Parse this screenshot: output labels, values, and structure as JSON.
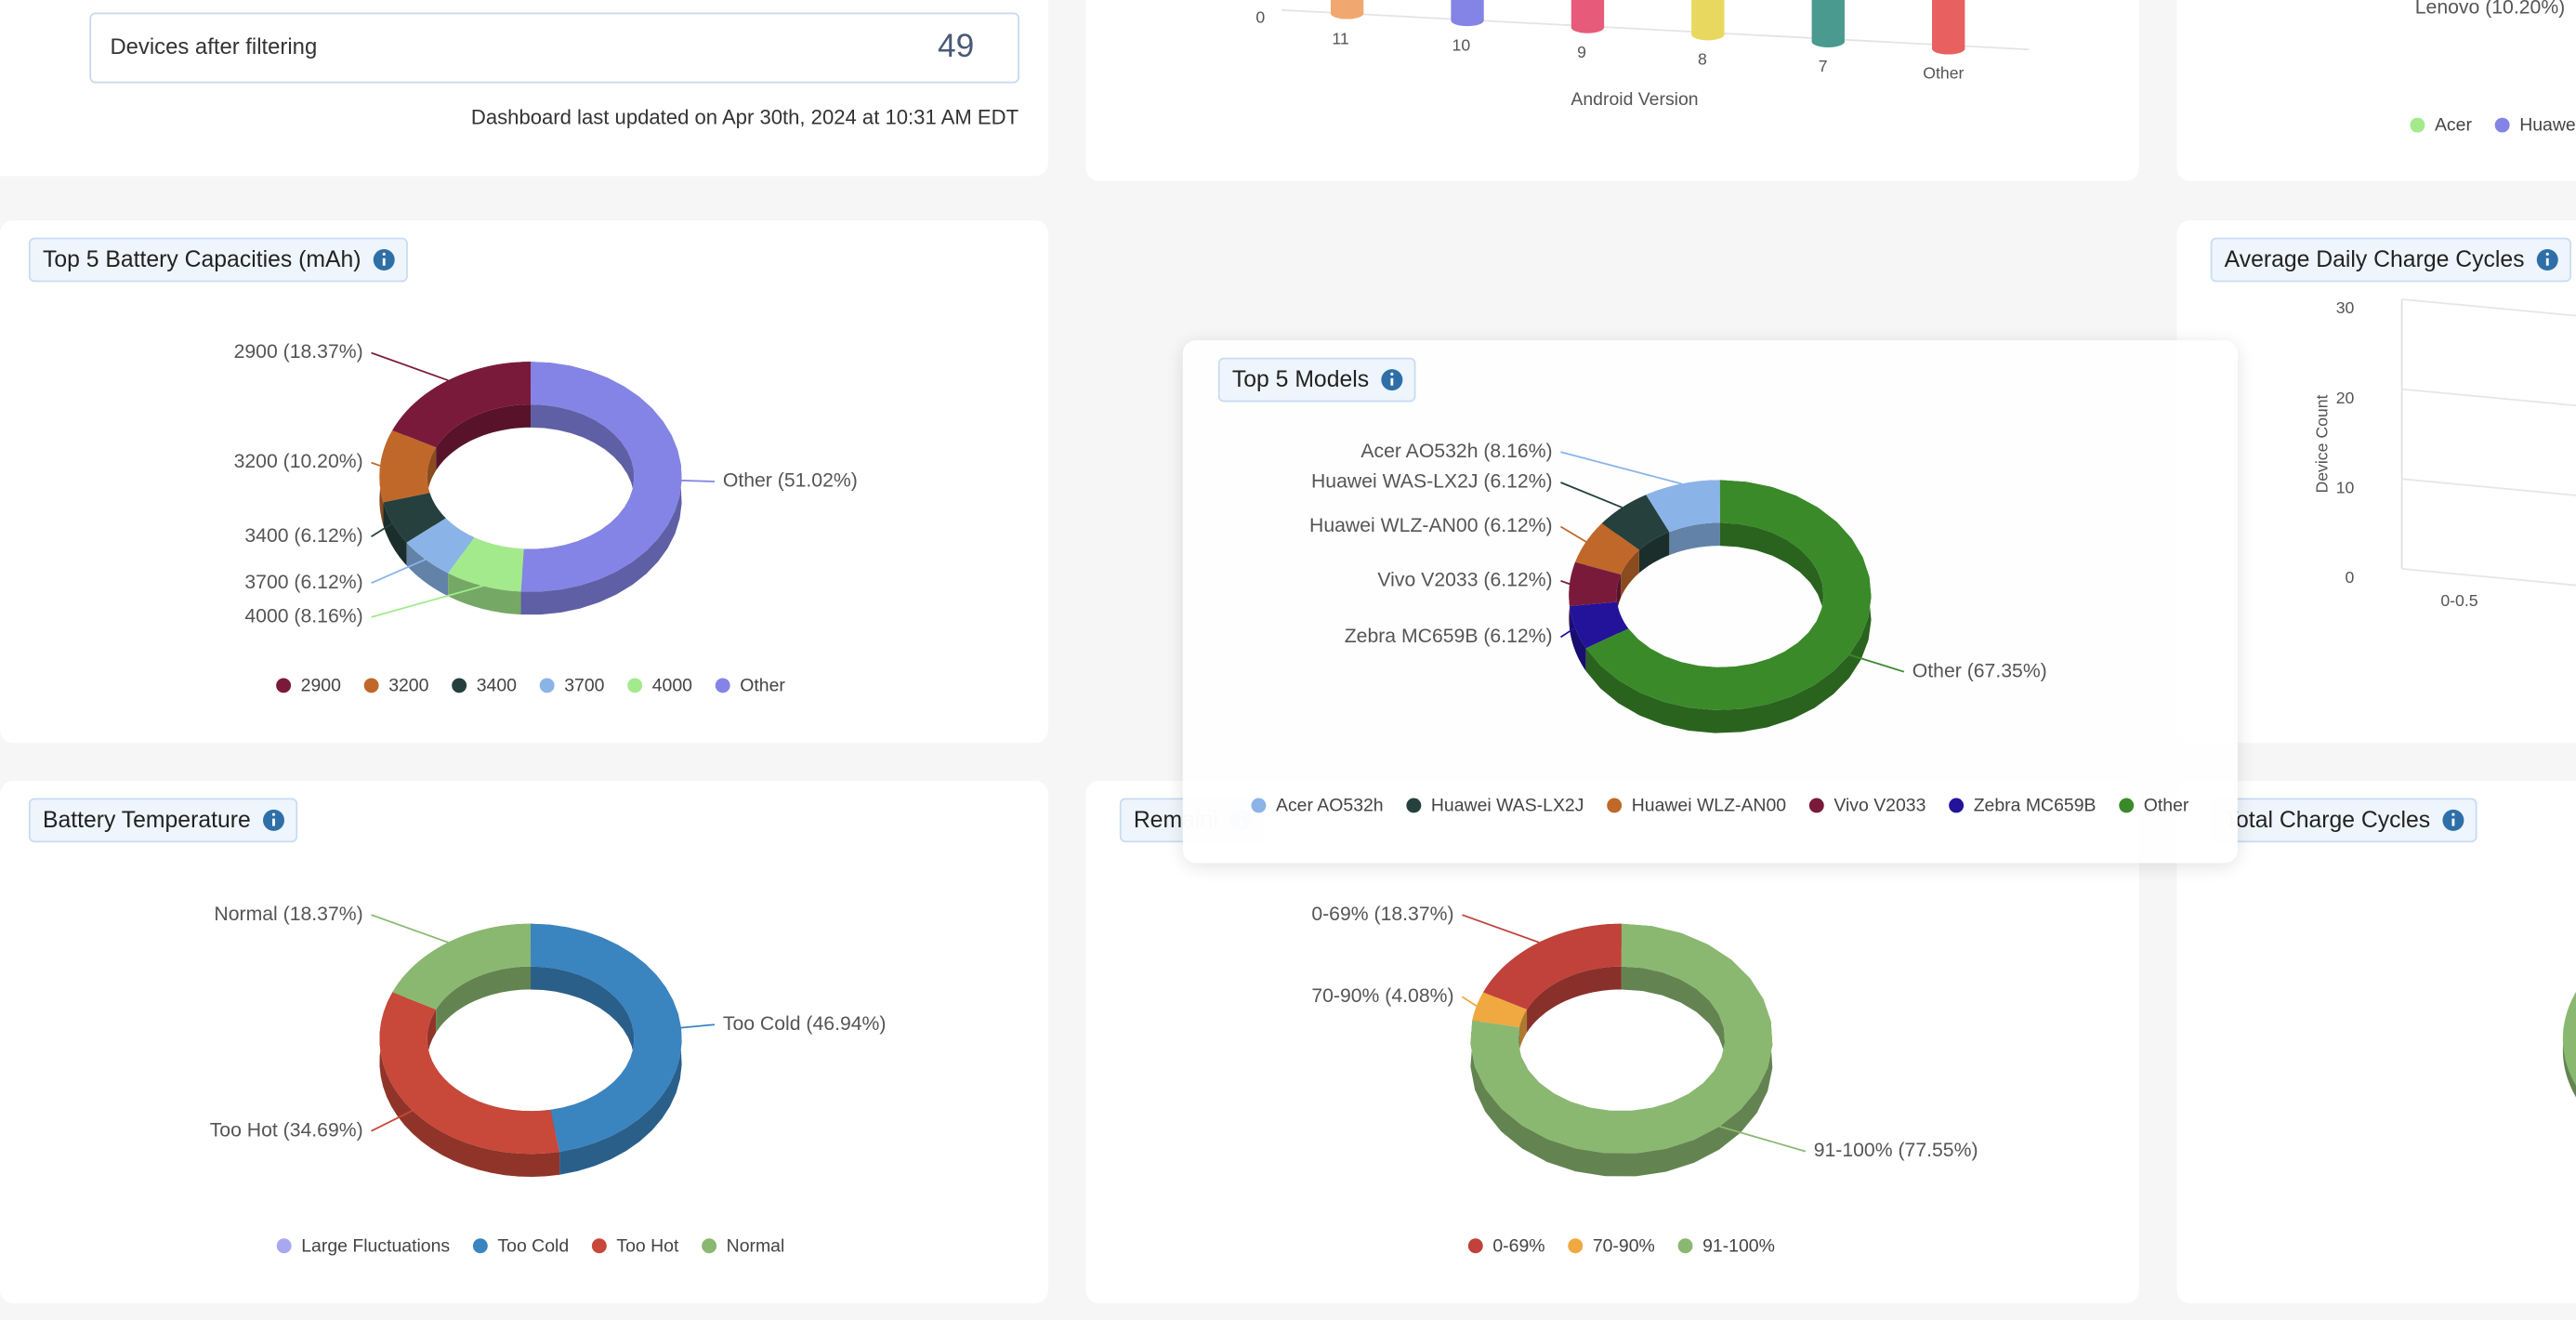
{
  "filter_panel": {
    "label": "Devices after filtering",
    "count": 49,
    "updated": "Dashboard last updated on Apr 30th, 2024 at 10:31 AM EDT"
  },
  "chart_data": [
    {
      "type": "bar",
      "x_label": "Android Version",
      "categories": [
        "11",
        "10",
        "9",
        "8",
        "7",
        "Other"
      ],
      "colors": [
        "#f0a870",
        "#8484e6",
        "#e85a7a",
        "#e8d860",
        "#4a9a90",
        "#e86060"
      ],
      "yticks": [
        0
      ]
    },
    {
      "type": "pie",
      "annotations": [
        "Lenovo (10.20%)"
      ],
      "categories": [
        "Acer",
        "Huawei"
      ],
      "colors": [
        "#a3ea8c",
        "#8484e6"
      ]
    },
    {
      "type": "pie",
      "title": "Top 5 Battery Capacities (mAh)",
      "direction": "counterclockwise",
      "categories": [
        "2900",
        "3200",
        "3400",
        "3700",
        "4000",
        "Other"
      ],
      "values": [
        18.37,
        10.2,
        6.12,
        6.12,
        8.16,
        51.02
      ],
      "value_labels": [
        "2900 (18.37%)",
        "3200 (10.20%)",
        "3400 (6.12%)",
        "3700 (6.12%)",
        "4000 (8.16%)",
        "Other (51.02%)"
      ],
      "colors": [
        "#7a1a3a",
        "#c0682a",
        "#25403d",
        "#8ab4e8",
        "#a3ea8c",
        "#8484e6"
      ]
    },
    {
      "type": "bar",
      "title": "Average Daily Charge Cycles",
      "y_label": "Device Count",
      "categories": [
        "0-0.5"
      ],
      "ylim": [
        0,
        30
      ],
      "yticks": [
        0,
        10,
        20,
        30
      ]
    },
    {
      "type": "pie",
      "title": "Top 5 Models",
      "direction": "counterclockwise",
      "categories": [
        "Acer AO532h",
        "Huawei WAS-LX2J",
        "Huawei WLZ-AN00",
        "Vivo V2033",
        "Zebra MC659B",
        "Other"
      ],
      "values": [
        8.16,
        6.12,
        6.12,
        6.12,
        6.12,
        67.35
      ],
      "value_labels": [
        "Acer AO532h (8.16%)",
        "Huawei WAS-LX2J (6.12%)",
        "Huawei WLZ-AN00 (6.12%)",
        "Vivo V2033 (6.12%)",
        "Zebra MC659B (6.12%)",
        "Other (67.35%)"
      ],
      "colors": [
        "#8ab4e8",
        "#25403d",
        "#c0682a",
        "#7a1a3a",
        "#22139a",
        "#3a8a2a"
      ]
    },
    {
      "type": "pie",
      "title": "Battery Temperature",
      "direction": "clockwise",
      "categories": [
        "Large Fluctuations",
        "Too Cold",
        "Too Hot",
        "Normal"
      ],
      "values": [
        0,
        46.94,
        34.69,
        18.37
      ],
      "value_labels": [
        null,
        "Too Cold (46.94%)",
        "Too Hot (34.69%)",
        "Normal (18.37%)"
      ],
      "colors": [
        "#a8a8f0",
        "#3a84c0",
        "#c8483a",
        "#8ab870"
      ]
    },
    {
      "type": "pie",
      "title": "Remaini",
      "direction": "counterclockwise",
      "categories": [
        "0-69%",
        "70-90%",
        "91-100%"
      ],
      "values": [
        18.37,
        4.08,
        77.55
      ],
      "value_labels": [
        "0-69% (18.37%)",
        "70-90% (4.08%)",
        "91-100% (77.55%)"
      ],
      "colors": [
        "#c0423a",
        "#f0a840",
        "#8ab870"
      ]
    },
    {
      "type": "pie",
      "title": "Total Charge Cycles",
      "colors": [
        "#8ab870"
      ]
    }
  ]
}
